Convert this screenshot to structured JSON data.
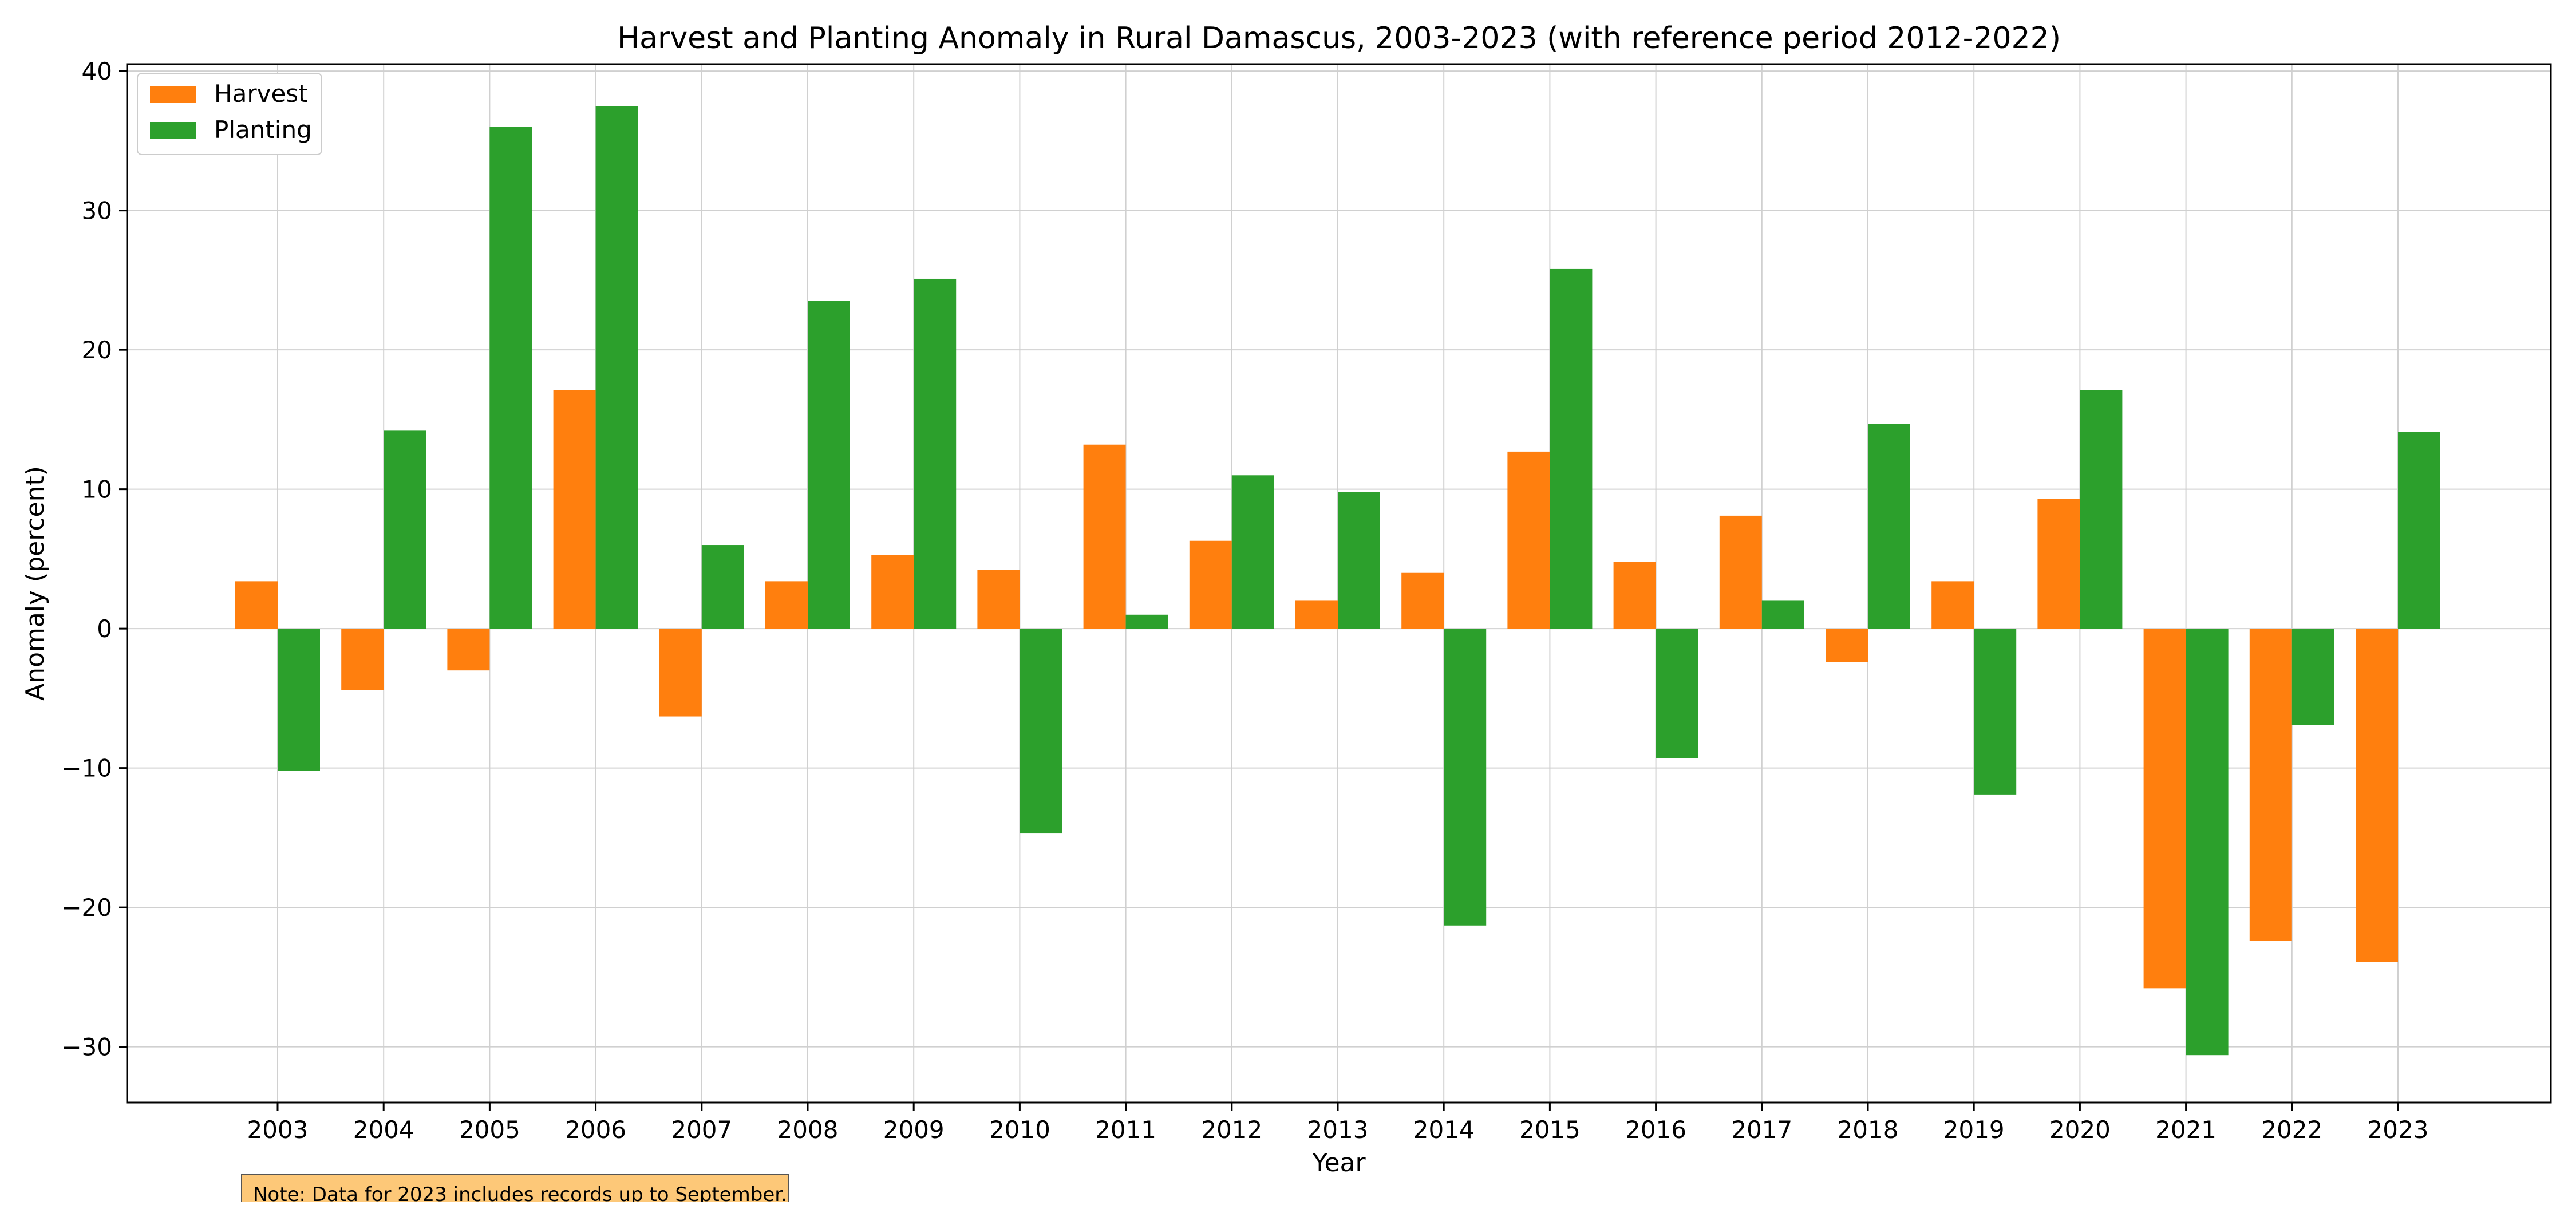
{
  "chart_data": {
    "type": "bar",
    "title": "Harvest and Planting Anomaly in Rural Damascus, 2003-2023 (with reference period 2012-2022)",
    "xlabel": "Year",
    "ylabel": "Anomaly (percent)",
    "ylim": [
      -34,
      40.5
    ],
    "yticks": [
      -30,
      -20,
      -10,
      0,
      10,
      20,
      30,
      40
    ],
    "ytick_labels": [
      "−30",
      "−20",
      "−10",
      "0",
      "10",
      "20",
      "30",
      "40"
    ],
    "grid": true,
    "legend_position": "top-left",
    "categories": [
      "2003",
      "2004",
      "2005",
      "2006",
      "2007",
      "2008",
      "2009",
      "2010",
      "2011",
      "2012",
      "2013",
      "2014",
      "2015",
      "2016",
      "2017",
      "2018",
      "2019",
      "2020",
      "2021",
      "2022",
      "2023"
    ],
    "series": [
      {
        "name": "Harvest",
        "color": "#ff7f0e",
        "values": [
          3.4,
          -4.4,
          -3.0,
          17.1,
          -6.3,
          3.4,
          5.3,
          4.2,
          13.2,
          6.3,
          2.0,
          4.0,
          12.7,
          4.8,
          8.1,
          -2.4,
          3.4,
          9.3,
          -25.8,
          -22.4,
          -23.9
        ]
      },
      {
        "name": "Planting",
        "color": "#2ca02c",
        "values": [
          -10.2,
          14.2,
          36.0,
          37.5,
          6.0,
          23.5,
          25.1,
          -14.7,
          1.0,
          11.0,
          9.8,
          -21.3,
          25.8,
          -9.3,
          2.0,
          14.7,
          -11.9,
          17.1,
          -30.6,
          -6.9,
          14.1
        ]
      }
    ],
    "annotation": "Note: Data for 2023 includes records up to September."
  }
}
